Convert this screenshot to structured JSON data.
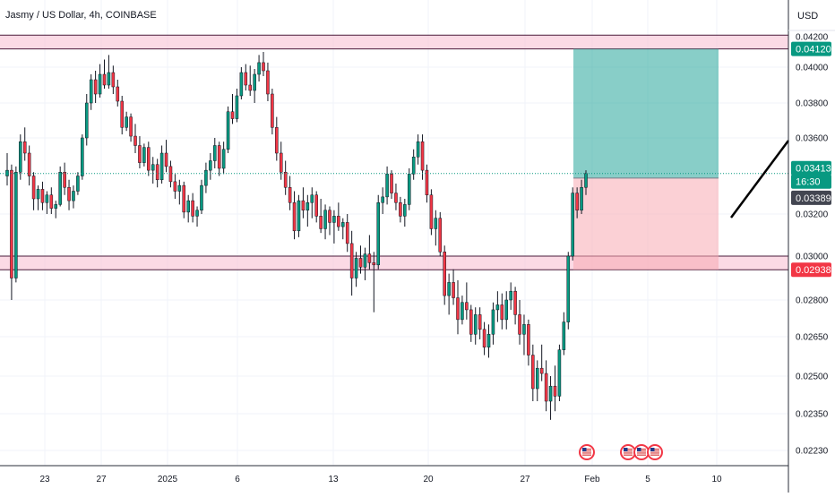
{
  "header": {
    "symbol_title": "Jasmy / US Dollar, 4h, COINBASE",
    "currency": "USD"
  },
  "chart_data": {
    "type": "candlestick",
    "title": "Jasmy / US Dollar, 4h, COINBASE",
    "xlabel": "",
    "ylabel": "",
    "price_axis": {
      "unit": "USD",
      "ticks": [
        "0.04200",
        "0.04000",
        "0.03800",
        "0.03600",
        "0.03200",
        "0.03000",
        "0.02800",
        "0.02650",
        "0.02500",
        "0.02350",
        "0.02230"
      ]
    },
    "time_axis": {
      "ticks": [
        "23",
        "27",
        "2025",
        "6",
        "13",
        "20",
        "27",
        "Feb",
        "5",
        "10"
      ]
    },
    "grid": true,
    "price_labels": [
      {
        "text": "0.04120",
        "kind": "target",
        "color": "#089981"
      },
      {
        "text": "0.03413",
        "kind": "last",
        "color": "#089981"
      },
      {
        "text": "16:30",
        "kind": "countdown",
        "color": "#089981"
      },
      {
        "text": "0.03389",
        "kind": "entry",
        "color": "#434651"
      },
      {
        "text": "0.02938",
        "kind": "stop",
        "color": "#f23645"
      }
    ],
    "zones": [
      {
        "name": "resistance",
        "low": 0.0412,
        "high": 0.0421,
        "color": "#f8bbd0"
      },
      {
        "name": "support",
        "low": 0.02938,
        "high": 0.03,
        "color": "#f8bbd0"
      }
    ],
    "position": {
      "entry": 0.03389,
      "target": 0.0412,
      "stop": 0.02938,
      "profit_color": "#26a69a",
      "loss_color": "#f7a9b3"
    },
    "events": [
      "us-flag-icon",
      "us-flag-icon",
      "us-flag-icon",
      "us-flag-icon"
    ],
    "colors": {
      "up": "#089981",
      "down": "#f23645",
      "wick": "#131722"
    },
    "candles": [
      [
        0.034,
        0.0352,
        0.0335,
        0.0343
      ],
      [
        0.0343,
        0.0346,
        0.028,
        0.029
      ],
      [
        0.029,
        0.0345,
        0.0288,
        0.0342
      ],
      [
        0.0342,
        0.0362,
        0.0338,
        0.0358
      ],
      [
        0.0358,
        0.0366,
        0.0348,
        0.0352
      ],
      [
        0.0352,
        0.0356,
        0.0335,
        0.034
      ],
      [
        0.034,
        0.0342,
        0.0322,
        0.0328
      ],
      [
        0.0328,
        0.0335,
        0.0322,
        0.0333
      ],
      [
        0.0333,
        0.0337,
        0.0322,
        0.0326
      ],
      [
        0.0326,
        0.0332,
        0.032,
        0.033
      ],
      [
        0.033,
        0.0334,
        0.032,
        0.0323
      ],
      [
        0.0323,
        0.0327,
        0.0318,
        0.0325
      ],
      [
        0.0325,
        0.0345,
        0.0324,
        0.0342
      ],
      [
        0.0342,
        0.0347,
        0.033,
        0.0334
      ],
      [
        0.0334,
        0.0338,
        0.0322,
        0.0327
      ],
      [
        0.0327,
        0.0335,
        0.0323,
        0.0332
      ],
      [
        0.0332,
        0.0342,
        0.033,
        0.034
      ],
      [
        0.034,
        0.0362,
        0.0338,
        0.036
      ],
      [
        0.036,
        0.0385,
        0.0356,
        0.038
      ],
      [
        0.038,
        0.0396,
        0.0376,
        0.0393
      ],
      [
        0.0393,
        0.0398,
        0.038,
        0.0385
      ],
      [
        0.0385,
        0.0402,
        0.0383,
        0.0396
      ],
      [
        0.0396,
        0.0405,
        0.0388,
        0.039
      ],
      [
        0.039,
        0.0408,
        0.0388,
        0.0397
      ],
      [
        0.0397,
        0.0401,
        0.0385,
        0.0389
      ],
      [
        0.0389,
        0.0393,
        0.0378,
        0.0381
      ],
      [
        0.0381,
        0.0384,
        0.0362,
        0.0366
      ],
      [
        0.0366,
        0.0375,
        0.0364,
        0.0372
      ],
      [
        0.0372,
        0.0374,
        0.0358,
        0.0361
      ],
      [
        0.0361,
        0.0368,
        0.0352,
        0.0356
      ],
      [
        0.0356,
        0.0361,
        0.0344,
        0.0347
      ],
      [
        0.0347,
        0.0357,
        0.0345,
        0.0355
      ],
      [
        0.0355,
        0.0358,
        0.034,
        0.0343
      ],
      [
        0.0343,
        0.035,
        0.0336,
        0.0346
      ],
      [
        0.0346,
        0.0349,
        0.0334,
        0.0338
      ],
      [
        0.0338,
        0.0356,
        0.0336,
        0.0352
      ],
      [
        0.0352,
        0.0359,
        0.0342,
        0.0345
      ],
      [
        0.0345,
        0.0348,
        0.0334,
        0.0337
      ],
      [
        0.0337,
        0.0341,
        0.0328,
        0.0332
      ],
      [
        0.0332,
        0.0338,
        0.0325,
        0.0335
      ],
      [
        0.0335,
        0.0337,
        0.0318,
        0.0321
      ],
      [
        0.0321,
        0.033,
        0.0316,
        0.0327
      ],
      [
        0.0327,
        0.0331,
        0.0316,
        0.0319
      ],
      [
        0.0319,
        0.0324,
        0.0314,
        0.0322
      ],
      [
        0.0322,
        0.0338,
        0.032,
        0.0335
      ],
      [
        0.0335,
        0.0347,
        0.0331,
        0.0343
      ],
      [
        0.0343,
        0.0352,
        0.0338,
        0.0348
      ],
      [
        0.0348,
        0.036,
        0.0344,
        0.0356
      ],
      [
        0.0356,
        0.0358,
        0.034,
        0.0344
      ],
      [
        0.0344,
        0.0358,
        0.0341,
        0.0354
      ],
      [
        0.0354,
        0.0378,
        0.0352,
        0.0375
      ],
      [
        0.0375,
        0.0385,
        0.0368,
        0.0371
      ],
      [
        0.0371,
        0.0388,
        0.0369,
        0.0384
      ],
      [
        0.0384,
        0.04,
        0.0382,
        0.0397
      ],
      [
        0.0397,
        0.0402,
        0.0387,
        0.039
      ],
      [
        0.039,
        0.0401,
        0.0384,
        0.0387
      ],
      [
        0.0387,
        0.0399,
        0.038,
        0.0396
      ],
      [
        0.0396,
        0.0408,
        0.0392,
        0.0403
      ],
      [
        0.0403,
        0.041,
        0.0395,
        0.0398
      ],
      [
        0.0398,
        0.0403,
        0.0381,
        0.0385
      ],
      [
        0.0385,
        0.0388,
        0.0362,
        0.0366
      ],
      [
        0.0366,
        0.0372,
        0.0348,
        0.0352
      ],
      [
        0.0352,
        0.0358,
        0.0338,
        0.0342
      ],
      [
        0.0342,
        0.0348,
        0.033,
        0.0334
      ],
      [
        0.0334,
        0.034,
        0.0322,
        0.0326
      ],
      [
        0.0326,
        0.0332,
        0.0308,
        0.0312
      ],
      [
        0.0312,
        0.033,
        0.0309,
        0.0327
      ],
      [
        0.0327,
        0.0334,
        0.0318,
        0.0322
      ],
      [
        0.0322,
        0.033,
        0.0314,
        0.0326
      ],
      [
        0.0326,
        0.0334,
        0.0318,
        0.033
      ],
      [
        0.033,
        0.0332,
        0.0316,
        0.0319
      ],
      [
        0.0319,
        0.0328,
        0.0311,
        0.0313
      ],
      [
        0.0313,
        0.0325,
        0.0308,
        0.0322
      ],
      [
        0.0322,
        0.0324,
        0.031,
        0.0316
      ],
      [
        0.0316,
        0.0322,
        0.0306,
        0.0319
      ],
      [
        0.0319,
        0.0326,
        0.0312,
        0.0314
      ],
      [
        0.0314,
        0.0318,
        0.0308,
        0.0316
      ],
      [
        0.0316,
        0.032,
        0.0302,
        0.0306
      ],
      [
        0.0306,
        0.0312,
        0.0282,
        0.029
      ],
      [
        0.029,
        0.0302,
        0.0286,
        0.0299
      ],
      [
        0.0299,
        0.0305,
        0.0292,
        0.0295
      ],
      [
        0.0295,
        0.0304,
        0.0289,
        0.0301
      ],
      [
        0.0301,
        0.031,
        0.0294,
        0.0297
      ],
      [
        0.0297,
        0.0302,
        0.0275,
        0.0296
      ],
      [
        0.0296,
        0.033,
        0.0294,
        0.0326
      ],
      [
        0.0326,
        0.0334,
        0.032,
        0.0329
      ],
      [
        0.0329,
        0.0345,
        0.0325,
        0.0341
      ],
      [
        0.0341,
        0.0343,
        0.0328,
        0.0331
      ],
      [
        0.0331,
        0.0336,
        0.0322,
        0.0326
      ],
      [
        0.0326,
        0.0329,
        0.0316,
        0.0319
      ],
      [
        0.0319,
        0.0328,
        0.0314,
        0.0325
      ],
      [
        0.0325,
        0.0344,
        0.0322,
        0.0341
      ],
      [
        0.0341,
        0.0354,
        0.0338,
        0.035
      ],
      [
        0.035,
        0.0362,
        0.0346,
        0.0358
      ],
      [
        0.0358,
        0.0362,
        0.0338,
        0.0343
      ],
      [
        0.0343,
        0.0346,
        0.0326,
        0.033
      ],
      [
        0.033,
        0.0333,
        0.031,
        0.0313
      ],
      [
        0.0313,
        0.0322,
        0.0305,
        0.0318
      ],
      [
        0.0318,
        0.0321,
        0.03,
        0.0302
      ],
      [
        0.0302,
        0.0305,
        0.0278,
        0.0282
      ],
      [
        0.0282,
        0.0292,
        0.0274,
        0.0288
      ],
      [
        0.0288,
        0.0294,
        0.0278,
        0.0281
      ],
      [
        0.0281,
        0.0289,
        0.0266,
        0.0272
      ],
      [
        0.0272,
        0.0282,
        0.027,
        0.0279
      ],
      [
        0.0279,
        0.0288,
        0.0272,
        0.0276
      ],
      [
        0.0276,
        0.0278,
        0.0263,
        0.0266
      ],
      [
        0.0266,
        0.0277,
        0.0262,
        0.0274
      ],
      [
        0.0274,
        0.0277,
        0.0264,
        0.0268
      ],
      [
        0.0268,
        0.0271,
        0.0258,
        0.0261
      ],
      [
        0.0261,
        0.027,
        0.0257,
        0.0266
      ],
      [
        0.0266,
        0.0279,
        0.0262,
        0.0276
      ],
      [
        0.0276,
        0.0284,
        0.0271,
        0.0278
      ],
      [
        0.0278,
        0.0283,
        0.0268,
        0.0272
      ],
      [
        0.0272,
        0.0284,
        0.0268,
        0.028
      ],
      [
        0.028,
        0.0288,
        0.0276,
        0.0284
      ],
      [
        0.0284,
        0.0286,
        0.027,
        0.0274
      ],
      [
        0.0274,
        0.028,
        0.0262,
        0.0266
      ],
      [
        0.0266,
        0.0274,
        0.0258,
        0.027
      ],
      [
        0.027,
        0.0272,
        0.0254,
        0.0258
      ],
      [
        0.0258,
        0.0262,
        0.024,
        0.0245
      ],
      [
        0.0245,
        0.0256,
        0.024,
        0.0253
      ],
      [
        0.0253,
        0.0262,
        0.0248,
        0.0251
      ],
      [
        0.0251,
        0.0256,
        0.0236,
        0.024
      ],
      [
        0.024,
        0.025,
        0.0233,
        0.0246
      ],
      [
        0.0246,
        0.0254,
        0.0236,
        0.0242
      ],
      [
        0.0242,
        0.0262,
        0.024,
        0.026
      ],
      [
        0.026,
        0.0275,
        0.0258,
        0.0271
      ],
      [
        0.0271,
        0.0302,
        0.0268,
        0.03
      ],
      [
        0.03,
        0.0334,
        0.0298,
        0.0331
      ],
      [
        0.0331,
        0.0334,
        0.0318,
        0.0322
      ],
      [
        0.0322,
        0.0338,
        0.032,
        0.0334
      ],
      [
        0.0334,
        0.0343,
        0.033,
        0.03413
      ]
    ]
  }
}
